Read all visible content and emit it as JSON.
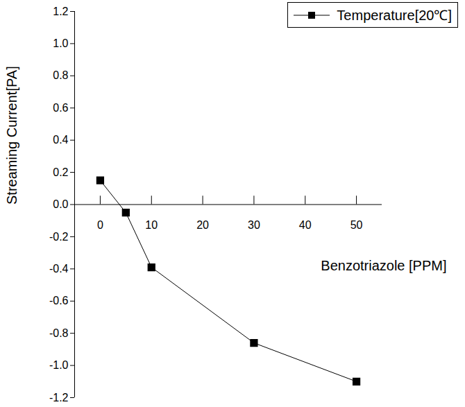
{
  "chart_data": {
    "type": "line",
    "x_label": "Benzotriazole [PPM]",
    "y_label": "Streaming Current[PA]",
    "x": [
      0,
      5,
      10,
      30,
      50
    ],
    "series": [
      {
        "name": "Temperature[20℃]",
        "color": "#000000",
        "marker": "square",
        "line_style": "solid",
        "values": [
          0.15,
          -0.05,
          -0.39,
          -0.86,
          -1.1
        ]
      }
    ],
    "xlim": [
      -5,
      55
    ],
    "xticks": [
      0,
      10,
      20,
      30,
      40,
      50
    ],
    "ylim": [
      -1.2,
      1.2
    ],
    "yticks": [
      -1.2,
      {
        "value": -1,
        "label": "-1.0"
      },
      -0.8,
      -0.6,
      -0.4,
      -0.2,
      {
        "value": 0,
        "label": "0.0"
      },
      0.2,
      0.4,
      0.6,
      0.8,
      {
        "value": 1,
        "label": "1.0"
      },
      1.2
    ],
    "legend": "upper right",
    "grid": false
  }
}
